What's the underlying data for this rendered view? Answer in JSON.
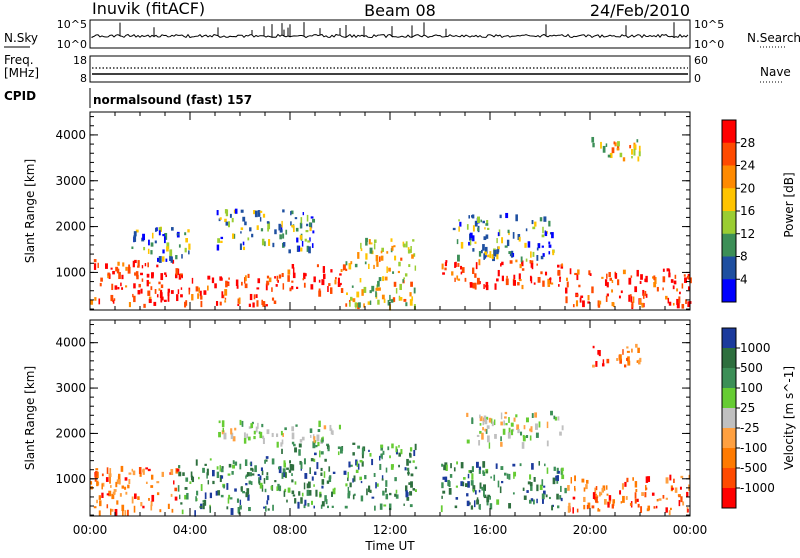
{
  "header": {
    "station": "Inuvik (fitACF)",
    "beam": "Beam 08",
    "date": "24/Feb/2010"
  },
  "housekeeping": {
    "nsky_label": "N.Sky",
    "nsearch_label": "N.Search",
    "freq_label_1": "Freq.",
    "freq_label_2": "[MHz]",
    "nave_label": "Nave",
    "cpid_label": "CPID",
    "cpid_text": "normalsound (fast) 157",
    "noise_left_ticks": [
      "10^5",
      "10^0"
    ],
    "noise_right_ticks": [
      "10^5",
      "10^0"
    ],
    "freq_left_ticks": [
      "18",
      "8"
    ],
    "freq_right_ticks": [
      "60",
      "0"
    ]
  },
  "chart_data": [
    {
      "type": "heatmap",
      "panel": "power",
      "ylabel": "Slant Range [km]",
      "xlabel": "",
      "xlim": [
        "00:00",
        "24:00"
      ],
      "ylim": [
        180,
        4500
      ],
      "yticks": [
        1000,
        2000,
        3000,
        4000
      ],
      "xticks": [
        "00:00",
        "04:00",
        "08:00",
        "12:00",
        "16:00",
        "20:00",
        "00:00"
      ],
      "colorbar": {
        "label": "Power [dB]",
        "ticks": [
          "28",
          "24",
          "20",
          "16",
          "12",
          "8",
          "4"
        ],
        "colors": [
          "#ff0000",
          "#ff4a00",
          "#ff8a00",
          "#ffc400",
          "#9acd32",
          "#3c8f57",
          "#1e4fa0",
          "#0000ff"
        ]
      },
      "echo_regions": [
        {
          "t_start": 0.0,
          "t_end": 3.5,
          "r_low": 300,
          "r_high": 1300,
          "level": "high"
        },
        {
          "t_start": 3.5,
          "t_end": 7.5,
          "r_low": 300,
          "r_high": 1000,
          "level": "high"
        },
        {
          "t_start": 7.5,
          "t_end": 10.2,
          "r_low": 600,
          "r_high": 1200,
          "level": "high"
        },
        {
          "t_start": 10.2,
          "t_end": 13.0,
          "r_low": 300,
          "r_high": 1800,
          "level": "medium"
        },
        {
          "t_start": 14.0,
          "t_end": 19.0,
          "r_low": 700,
          "r_high": 1300,
          "level": "high"
        },
        {
          "t_start": 19.0,
          "t_end": 24.0,
          "r_low": 300,
          "r_high": 1100,
          "level": "high"
        },
        {
          "t_start": 1.5,
          "t_end": 4.0,
          "r_low": 1300,
          "r_high": 2000,
          "level": "low"
        },
        {
          "t_start": 5.0,
          "t_end": 9.0,
          "r_low": 1500,
          "r_high": 2400,
          "level": "low"
        },
        {
          "t_start": 14.5,
          "t_end": 18.5,
          "r_low": 1300,
          "r_high": 2300,
          "level": "low"
        },
        {
          "t_start": 20.0,
          "t_end": 22.0,
          "r_low": 3500,
          "r_high": 4000,
          "level": "medium"
        }
      ]
    },
    {
      "type": "heatmap",
      "panel": "velocity",
      "ylabel": "Slant Range [km]",
      "xlabel": "Time UT",
      "xlim": [
        "00:00",
        "24:00"
      ],
      "ylim": [
        180,
        4500
      ],
      "yticks": [
        1000,
        2000,
        3000,
        4000
      ],
      "xticks": [
        "00:00",
        "04:00",
        "08:00",
        "12:00",
        "16:00",
        "20:00",
        "00:00"
      ],
      "colorbar": {
        "label": "Velocity [m s^-1]",
        "ticks": [
          "1000",
          "500",
          "100",
          "25",
          "-25",
          "-100",
          "-500",
          "-1000"
        ],
        "colors": [
          "#1b3a9c",
          "#2e6f3e",
          "#3c8f57",
          "#66cc33",
          "#c0c0c0",
          "#ffa040",
          "#ff7a00",
          "#ff4a00",
          "#ff0000"
        ]
      },
      "echo_regions": [
        {
          "t_start": 0.0,
          "t_end": 3.5,
          "r_low": 300,
          "r_high": 1300,
          "level": "negative"
        },
        {
          "t_start": 3.5,
          "t_end": 7.5,
          "r_low": 300,
          "r_high": 1500,
          "level": "positive"
        },
        {
          "t_start": 7.5,
          "t_end": 13.0,
          "r_low": 400,
          "r_high": 1800,
          "level": "positive"
        },
        {
          "t_start": 14.0,
          "t_end": 19.0,
          "r_low": 400,
          "r_high": 1400,
          "level": "positive"
        },
        {
          "t_start": 19.0,
          "t_end": 24.0,
          "r_low": 300,
          "r_high": 1100,
          "level": "negative"
        },
        {
          "t_start": 5.0,
          "t_end": 10.0,
          "r_low": 1800,
          "r_high": 2300,
          "level": "zero"
        },
        {
          "t_start": 15.0,
          "t_end": 19.0,
          "r_low": 1800,
          "r_high": 2500,
          "level": "zero"
        },
        {
          "t_start": 20.0,
          "t_end": 22.0,
          "r_low": 3500,
          "r_high": 4000,
          "level": "negative"
        }
      ]
    }
  ]
}
